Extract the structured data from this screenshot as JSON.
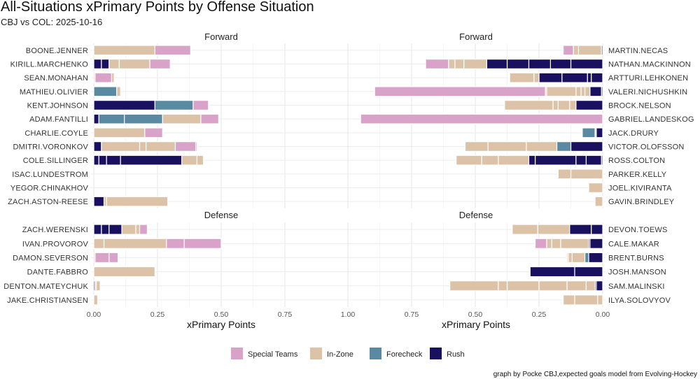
{
  "chart_data": {
    "type": "bar",
    "stacked": true,
    "title": "All-Situations xPrimary Points by Offense Situation",
    "subtitle": "CBJ vs COL: 2025-10-16",
    "xlabel": "xPrimary Points",
    "caption": "graph by Pocke CBJ,expected goals model from Evolving-Hockey",
    "legend": {
      "position": "bottom",
      "entries": [
        {
          "name": "Special Teams",
          "color": "#d9a3c9"
        },
        {
          "name": "In-Zone",
          "color": "#dcc3a8"
        },
        {
          "name": "Forecheck",
          "color": "#5a8aa2"
        },
        {
          "name": "Rush",
          "color": "#1a1060"
        }
      ]
    },
    "left_xlim": [
      0,
      0.75
    ],
    "right_xlim": [
      1.0,
      0
    ],
    "left_ticks": [
      "0.00",
      "0.25",
      "0.50",
      "0.75"
    ],
    "right_ticks": [
      "1.00",
      "0.75",
      "0.50",
      "0.25",
      "0.00"
    ],
    "panels": [
      {
        "facet": "Forward",
        "side": "left",
        "players": [
          {
            "name": "BOONE.JENNER",
            "segments": [
              [
                "In-Zone",
                0.24
              ],
              [
                "Special Teams",
                0.14
              ]
            ]
          },
          {
            "name": "KIRILL.MARCHENKO",
            "segments": [
              [
                "Rush",
                0.03
              ],
              [
                "Rush",
                0.03
              ],
              [
                "In-Zone",
                0.04
              ],
              [
                "In-Zone",
                0.12
              ],
              [
                "Special Teams",
                0.08
              ]
            ]
          },
          {
            "name": "SEAN.MONAHAN",
            "segments": [
              [
                "In-Zone",
                0.005
              ],
              [
                "Special Teams",
                0.065
              ],
              [
                "In-Zone",
                0.01
              ]
            ]
          },
          {
            "name": "MATHIEU.OLIVIER",
            "segments": [
              [
                "Forecheck",
                0.09
              ],
              [
                "In-Zone",
                0.015
              ]
            ]
          },
          {
            "name": "KENT.JOHNSON",
            "segments": [
              [
                "Rush",
                0.24
              ],
              [
                "Forecheck",
                0.15
              ],
              [
                "Special Teams",
                0.06
              ]
            ]
          },
          {
            "name": "ADAM.FANTILLI",
            "segments": [
              [
                "Rush",
                0.02
              ],
              [
                "Forecheck",
                0.1
              ],
              [
                "Forecheck",
                0.15
              ],
              [
                "In-Zone",
                0.15
              ],
              [
                "Special Teams",
                0.07
              ]
            ]
          },
          {
            "name": "CHARLIE.COYLE",
            "segments": [
              [
                "In-Zone",
                0.2
              ],
              [
                "Special Teams",
                0.07
              ]
            ]
          },
          {
            "name": "DMITRI.VORONKOV",
            "segments": [
              [
                "Rush",
                0.03
              ],
              [
                "In-Zone",
                0.15
              ],
              [
                "In-Zone",
                0.025
              ],
              [
                "In-Zone",
                0.115
              ],
              [
                "Special Teams",
                0.08
              ],
              [
                "Special Teams",
                0.005
              ]
            ]
          },
          {
            "name": "COLE.SILLINGER",
            "segments": [
              [
                "Rush",
                0.02
              ],
              [
                "Rush",
                0.03
              ],
              [
                "Rush",
                0.055
              ],
              [
                "Rush",
                0.24
              ],
              [
                "In-Zone",
                0.06
              ],
              [
                "In-Zone",
                0.025
              ]
            ]
          },
          {
            "name": "ISAC.LUNDESTROM",
            "segments": []
          },
          {
            "name": "YEGOR.CHINAKHOV",
            "segments": []
          },
          {
            "name": "ZACH.ASTON-REESE",
            "segments": [
              [
                "Rush",
                0.04
              ],
              [
                "In-Zone",
                0.01
              ],
              [
                "In-Zone",
                0.24
              ]
            ]
          }
        ]
      },
      {
        "facet": "Forward",
        "side": "right",
        "players": [
          {
            "name": "MARTIN.NECAS",
            "segments": [
              [
                "Rush",
                0.005
              ],
              [
                "In-Zone",
                0.09
              ],
              [
                "In-Zone",
                0.02
              ],
              [
                "Special Teams",
                0.04
              ]
            ]
          },
          {
            "name": "NATHAN.MACKINNON",
            "segments": [
              [
                "Rush",
                0.125
              ],
              [
                "Rush",
                0.08
              ],
              [
                "Rush",
                0.085
              ],
              [
                "Rush",
                0.085
              ],
              [
                "Rush",
                0.08
              ],
              [
                "In-Zone",
                0.09
              ],
              [
                "In-Zone",
                0.035
              ],
              [
                "In-Zone",
                0.025
              ],
              [
                "Special Teams",
                0.09
              ]
            ]
          },
          {
            "name": "ARTTURI.LEHKONEN",
            "segments": [
              [
                "Rush",
                0.045
              ],
              [
                "Rush",
                0.015
              ],
              [
                "Rush",
                0.1
              ],
              [
                "Rush",
                0.09
              ],
              [
                "In-Zone",
                0.02
              ],
              [
                "In-Zone",
                0.095
              ]
            ]
          },
          {
            "name": "VALERI.NICHUSHKIN",
            "segments": [
              [
                "Rush",
                0.005
              ],
              [
                "Rush",
                0.045
              ],
              [
                "In-Zone",
                0.02
              ],
              [
                "In-Zone",
                0.015
              ],
              [
                "In-Zone",
                0.02
              ],
              [
                "In-Zone",
                0.115
              ],
              [
                "In-Zone",
                0.005
              ],
              [
                "Special Teams",
                0.67
              ]
            ]
          },
          {
            "name": "BROCK.NELSON",
            "segments": [
              [
                "Rush",
                0.105
              ],
              [
                "In-Zone",
                0.025
              ],
              [
                "In-Zone",
                0.045
              ],
              [
                "In-Zone",
                0.02
              ],
              [
                "In-Zone",
                0.19
              ]
            ]
          },
          {
            "name": "GABRIEL.LANDESKOG",
            "segments": [
              [
                "Special Teams",
                0.95
              ]
            ]
          },
          {
            "name": "JACK.DRURY",
            "segments": [
              [
                "Rush",
                0.025
              ],
              [
                "In-Zone",
                0.005
              ],
              [
                "Forecheck",
                0.05
              ]
            ]
          },
          {
            "name": "VICTOR.OLOFSSON",
            "segments": [
              [
                "Rush",
                0.125
              ],
              [
                "Forecheck",
                0.055
              ],
              [
                "In-Zone",
                0.12
              ],
              [
                "In-Zone",
                0.15
              ],
              [
                "In-Zone",
                0.09
              ]
            ]
          },
          {
            "name": "ROSS.COLTON",
            "segments": [
              [
                "Rush",
                0.005
              ],
              [
                "Rush",
                0.06
              ],
              [
                "Rush",
                0.04
              ],
              [
                "Rush",
                0.16
              ],
              [
                "Rush",
                0.025
              ],
              [
                "In-Zone",
                0.12
              ],
              [
                "In-Zone",
                0.065
              ],
              [
                "In-Zone",
                0.1
              ]
            ]
          },
          {
            "name": "PARKER.KELLY",
            "segments": [
              [
                "In-Zone",
                0.125
              ],
              [
                "In-Zone",
                0.05
              ]
            ]
          },
          {
            "name": "JOEL.KIVIRANTA",
            "segments": [
              [
                "In-Zone",
                0.055
              ]
            ]
          },
          {
            "name": "GAVIN.BRINDLEY",
            "segments": [
              [
                "In-Zone",
                0.03
              ]
            ]
          }
        ]
      },
      {
        "facet": "Defense",
        "side": "left",
        "players": [
          {
            "name": "ZACH.WERENSKI",
            "segments": [
              [
                "Rush",
                0.03
              ],
              [
                "Rush",
                0.03
              ],
              [
                "Rush",
                0.05
              ],
              [
                "In-Zone",
                0.055
              ],
              [
                "In-Zone",
                0.015
              ],
              [
                "Special Teams",
                0.03
              ]
            ]
          },
          {
            "name": "IVAN.PROVOROV",
            "segments": [
              [
                "In-Zone",
                0.04
              ],
              [
                "In-Zone",
                0.245
              ],
              [
                "Special Teams",
                0.07
              ],
              [
                "Special Teams",
                0.145
              ]
            ]
          },
          {
            "name": "DAMON.SEVERSON",
            "segments": [
              [
                "In-Zone",
                0.005
              ],
              [
                "Special Teams",
                0.055
              ],
              [
                "Special Teams",
                0.035
              ]
            ]
          },
          {
            "name": "DANTE.FABBRO",
            "segments": [
              [
                "In-Zone",
                0.24
              ]
            ]
          },
          {
            "name": "DENTON.MATEYCHUK",
            "segments": [
              [
                "Rush",
                0.005
              ],
              [
                "In-Zone",
                0.005
              ],
              [
                "In-Zone",
                0.015
              ]
            ]
          },
          {
            "name": "JAKE.CHRISTIANSEN",
            "segments": [
              [
                "In-Zone",
                0.015
              ]
            ]
          }
        ]
      },
      {
        "facet": "Defense",
        "side": "right",
        "players": [
          {
            "name": "DEVON.TOEWS",
            "segments": [
              [
                "Rush",
                0.045
              ],
              [
                "Rush",
                0.085
              ],
              [
                "In-Zone",
                0.125
              ],
              [
                "In-Zone",
                0.1
              ]
            ]
          },
          {
            "name": "CALE.MAKAR",
            "segments": [
              [
                "Rush",
                0.05
              ],
              [
                "Rush",
                0.005
              ],
              [
                "In-Zone",
                0.11
              ],
              [
                "In-Zone",
                0.035
              ],
              [
                "In-Zone",
                0.02
              ],
              [
                "Special Teams",
                0.045
              ]
            ]
          },
          {
            "name": "BRENT.BURNS",
            "segments": [
              [
                "Rush",
                0.055
              ],
              [
                "Forecheck",
                0.015
              ],
              [
                "In-Zone",
                0.05
              ],
              [
                "In-Zone",
                0.015
              ],
              [
                "In-Zone",
                0.005
              ]
            ]
          },
          {
            "name": "JOSH.MANSON",
            "segments": [
              [
                "Rush",
                0.11
              ],
              [
                "Rush",
                0.175
              ]
            ]
          },
          {
            "name": "SAM.MALINSKI",
            "segments": [
              [
                "Rush",
                0.025
              ],
              [
                "Rush",
                0.005
              ],
              [
                "In-Zone",
                0.035
              ],
              [
                "In-Zone",
                0.075
              ],
              [
                "In-Zone",
                0.11
              ],
              [
                "In-Zone",
                0.125
              ],
              [
                "In-Zone",
                0.035
              ],
              [
                "In-Zone",
                0.19
              ]
            ]
          },
          {
            "name": "ILYA.SOLOVYOV",
            "segments": [
              [
                "In-Zone",
                0.02
              ],
              [
                "In-Zone",
                0.09
              ],
              [
                "In-Zone",
                0.045
              ]
            ]
          }
        ]
      }
    ]
  }
}
